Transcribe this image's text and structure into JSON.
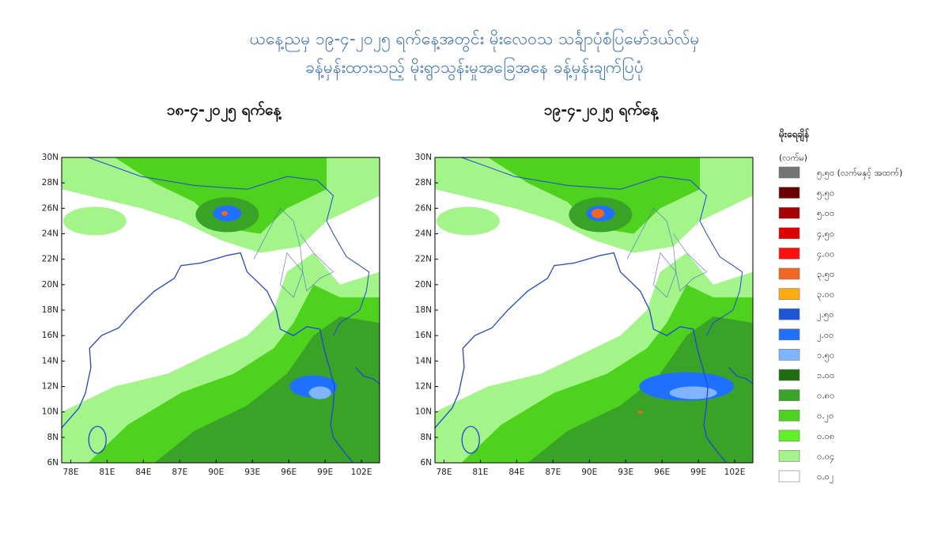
{
  "header": {
    "title_line1": "ယနေ့ညမှ ၁၉-၄-၂၀၂၅ ရက်နေ့အတွင်း မိုးလေဝသ သင်္ချာပုံစံပြမော်ဒယ်လ်မှ",
    "title_line2": "ခန့်မှန်းထားသည့် မိုးရွာသွန်းမှုအခြေအနေ ခန့်မှန်းချက်ပြပုံ"
  },
  "maps": [
    {
      "title": "၁၈-၄-၂၀၂၅ ရက်နေ့"
    },
    {
      "title": "၁၉-၄-၂၀၂၅ ရက်နေ့"
    }
  ],
  "axes": {
    "lat_ticks": [
      "30N",
      "28N",
      "26N",
      "24N",
      "22N",
      "20N",
      "18N",
      "16N",
      "14N",
      "12N",
      "10N",
      "8N",
      "6N"
    ],
    "lon_ticks": [
      "78E",
      "81E",
      "84E",
      "87E",
      "90E",
      "93E",
      "96E",
      "99E",
      "102E"
    ]
  },
  "legend": {
    "title": "မိုးရေချိန်",
    "unit": "(လက်မ)",
    "items": [
      {
        "label": "၅.၅၀ (လက်မနှင့် အထက်)",
        "color": "#737373"
      },
      {
        "label": "၅.၅၀",
        "color": "#6b0000"
      },
      {
        "label": "၅.၀၀",
        "color": "#a80000"
      },
      {
        "label": "၄.၅၀",
        "color": "#e00000"
      },
      {
        "label": "၄.၀၀",
        "color": "#ff1010"
      },
      {
        "label": "၃.၅၀",
        "color": "#f26522"
      },
      {
        "label": "၃.၀၀",
        "color": "#ffaa10"
      },
      {
        "label": "၂.၅၀",
        "color": "#1a56d6"
      },
      {
        "label": "၂.၀၀",
        "color": "#2070ff"
      },
      {
        "label": "၁.၅၀",
        "color": "#80b4ff"
      },
      {
        "label": "၁.၀၀",
        "color": "#1e6e10"
      },
      {
        "label": "၀.၈၀",
        "color": "#38a326"
      },
      {
        "label": "၀.၂၀",
        "color": "#4fd21e"
      },
      {
        "label": "၀.၀၈",
        "color": "#60f028"
      },
      {
        "label": "၀.၀၄",
        "color": "#a3f58a"
      },
      {
        "label": "၀.၀၂",
        "color": "#ffffff"
      }
    ]
  }
}
